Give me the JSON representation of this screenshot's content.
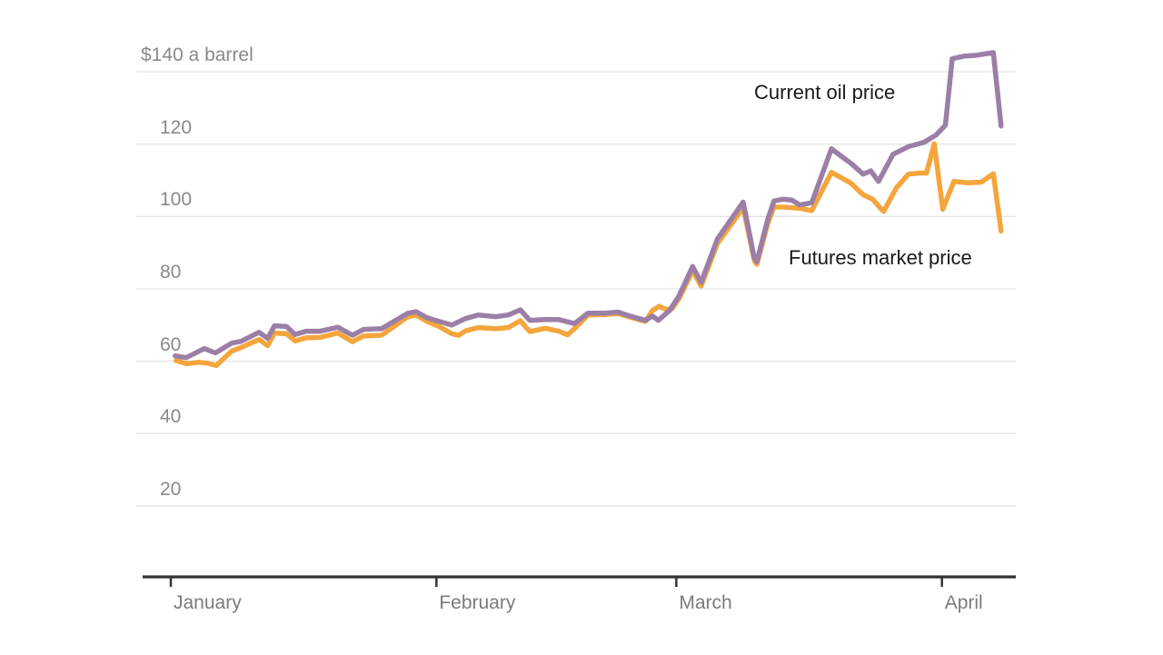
{
  "chart_data": {
    "type": "line",
    "title": "",
    "unit_label": "$140 a barrel",
    "annotations": {
      "current": "Current oil price",
      "futures": "Futures market price"
    },
    "y_ticks": [
      {
        "value": 140,
        "label": "$140 a barrel"
      },
      {
        "value": 120,
        "label": "120"
      },
      {
        "value": 100,
        "label": "100"
      },
      {
        "value": 80,
        "label": "80"
      },
      {
        "value": 60,
        "label": "60"
      },
      {
        "value": 40,
        "label": "40"
      },
      {
        "value": 20,
        "label": "20"
      }
    ],
    "x_ticks": [
      {
        "day": 0,
        "label": "January"
      },
      {
        "day": 31,
        "label": "February"
      },
      {
        "day": 59,
        "label": "March"
      },
      {
        "day": 90,
        "label": "April"
      }
    ],
    "ylim": [
      0,
      150
    ],
    "xlim_days": [
      -4,
      98.6
    ],
    "grid": "horizontal-only",
    "legend": "inline-annotations",
    "colors": {
      "current": "#9b7fa7",
      "futures": "#f4a53c",
      "gridline": "#e3e3e3",
      "axis": "#333333"
    },
    "series": [
      {
        "name": "Futures market price",
        "color": "#f4a53c",
        "points": [
          [
            0.6,
            60.2
          ],
          [
            1.8,
            59.3
          ],
          [
            3.2,
            59.7
          ],
          [
            4.2,
            59.5
          ],
          [
            5.3,
            58.8
          ],
          [
            7.1,
            62.8
          ],
          [
            8.2,
            63.8
          ],
          [
            10.3,
            66.0
          ],
          [
            11.3,
            64.3
          ],
          [
            12.1,
            67.8
          ],
          [
            13.5,
            67.6
          ],
          [
            14.5,
            65.6
          ],
          [
            15.8,
            66.5
          ],
          [
            17.4,
            66.6
          ],
          [
            19.5,
            67.8
          ],
          [
            21.2,
            65.4
          ],
          [
            22.5,
            67.0
          ],
          [
            24.6,
            67.2
          ],
          [
            27.6,
            72.2
          ],
          [
            28.6,
            72.8
          ],
          [
            29.9,
            71.0
          ],
          [
            31.3,
            69.6
          ],
          [
            32.8,
            67.6
          ],
          [
            33.6,
            67.2
          ],
          [
            34.4,
            68.4
          ],
          [
            35.9,
            69.3
          ],
          [
            37.9,
            69.0
          ],
          [
            39.4,
            69.3
          ],
          [
            40.8,
            71.2
          ],
          [
            41.9,
            68.2
          ],
          [
            43.7,
            69.1
          ],
          [
            45.3,
            68.3
          ],
          [
            46.3,
            67.3
          ],
          [
            47.1,
            69.0
          ],
          [
            48.7,
            72.8
          ],
          [
            50.6,
            72.9
          ],
          [
            52.2,
            73.2
          ],
          [
            54.3,
            71.7
          ],
          [
            55.4,
            71.0
          ],
          [
            56.2,
            74.0
          ],
          [
            57.0,
            75.2
          ],
          [
            57.8,
            74.3
          ],
          [
            58.5,
            74.5
          ],
          [
            59.3,
            77.2
          ],
          [
            60.9,
            85.0
          ],
          [
            61.9,
            80.8
          ],
          [
            63.8,
            92.5
          ],
          [
            65.4,
            97.8
          ],
          [
            66.8,
            102.5
          ],
          [
            68.1,
            87.8
          ],
          [
            68.4,
            86.8
          ],
          [
            69.7,
            98.3
          ],
          [
            70.4,
            102.6
          ],
          [
            71.5,
            102.6
          ],
          [
            73.4,
            102.3
          ],
          [
            74.8,
            101.6
          ],
          [
            77.1,
            112.2
          ],
          [
            78.4,
            110.5
          ],
          [
            79.4,
            109.2
          ],
          [
            80.8,
            106.0
          ],
          [
            81.9,
            104.8
          ],
          [
            82.9,
            102.1
          ],
          [
            83.2,
            101.4
          ],
          [
            84.7,
            108.0
          ],
          [
            86.1,
            111.7
          ],
          [
            87.4,
            112.0
          ],
          [
            88.2,
            112.0
          ],
          [
            89.1,
            120.1
          ],
          [
            90.1,
            102.0
          ],
          [
            91.4,
            109.7
          ],
          [
            93.0,
            109.3
          ],
          [
            94.6,
            109.5
          ],
          [
            96.0,
            111.8
          ],
          [
            96.9,
            96.0
          ]
        ]
      },
      {
        "name": "Current oil price",
        "color": "#9b7fa7",
        "points": [
          [
            0.5,
            61.5
          ],
          [
            1.8,
            61.0
          ],
          [
            3.9,
            63.5
          ],
          [
            5.2,
            62.3
          ],
          [
            7.1,
            65.0
          ],
          [
            8.2,
            65.5
          ],
          [
            10.3,
            68.0
          ],
          [
            11.3,
            66.3
          ],
          [
            12.1,
            69.8
          ],
          [
            13.5,
            69.6
          ],
          [
            14.5,
            67.4
          ],
          [
            15.8,
            68.3
          ],
          [
            17.4,
            68.3
          ],
          [
            19.5,
            69.4
          ],
          [
            21.2,
            67.2
          ],
          [
            22.5,
            68.8
          ],
          [
            24.6,
            69.0
          ],
          [
            27.6,
            73.2
          ],
          [
            28.6,
            73.7
          ],
          [
            29.9,
            72.0
          ],
          [
            31.3,
            71.0
          ],
          [
            32.8,
            70.0
          ],
          [
            34.4,
            71.8
          ],
          [
            35.9,
            72.8
          ],
          [
            37.9,
            72.3
          ],
          [
            39.4,
            72.8
          ],
          [
            40.8,
            74.2
          ],
          [
            41.9,
            71.3
          ],
          [
            43.7,
            71.5
          ],
          [
            45.3,
            71.5
          ],
          [
            47.1,
            70.4
          ],
          [
            48.7,
            73.3
          ],
          [
            50.6,
            73.3
          ],
          [
            52.2,
            73.6
          ],
          [
            53.2,
            72.8
          ],
          [
            54.3,
            72.0
          ],
          [
            55.4,
            71.3
          ],
          [
            56.2,
            72.5
          ],
          [
            56.9,
            71.3
          ],
          [
            58.2,
            74.0
          ],
          [
            59.3,
            78.0
          ],
          [
            60.9,
            86.2
          ],
          [
            61.9,
            81.8
          ],
          [
            63.8,
            93.8
          ],
          [
            65.4,
            99.2
          ],
          [
            66.8,
            104.0
          ],
          [
            68.1,
            88.5
          ],
          [
            68.4,
            87.5
          ],
          [
            69.7,
            99.5
          ],
          [
            70.4,
            104.3
          ],
          [
            71.5,
            104.8
          ],
          [
            72.5,
            104.5
          ],
          [
            73.4,
            103.2
          ],
          [
            74.8,
            103.8
          ],
          [
            77.1,
            118.7
          ],
          [
            78.4,
            116.4
          ],
          [
            79.4,
            114.7
          ],
          [
            80.8,
            111.7
          ],
          [
            81.7,
            112.6
          ],
          [
            82.6,
            109.7
          ],
          [
            84.3,
            117.2
          ],
          [
            86.1,
            119.3
          ],
          [
            87.9,
            120.5
          ],
          [
            89.3,
            122.5
          ],
          [
            90.4,
            125.2
          ],
          [
            91.2,
            143.6
          ],
          [
            92.5,
            144.3
          ],
          [
            94.1,
            144.6
          ],
          [
            96.0,
            145.3
          ],
          [
            96.9,
            125.0
          ]
        ]
      }
    ]
  }
}
